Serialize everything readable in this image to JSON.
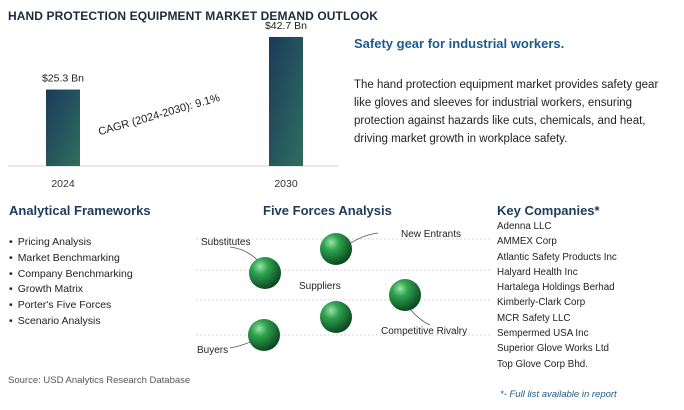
{
  "title": "HAND PROTECTION EQUIPMENT MARKET DEMAND OUTLOOK",
  "chart_data": {
    "type": "bar",
    "categories": [
      "2024",
      "2030"
    ],
    "values": [
      25.3,
      42.7
    ],
    "value_labels": [
      "$25.3 Bn",
      "$42.7 Bn"
    ],
    "annotation": "CAGR (2024-2030): 9.1%",
    "ylim": [
      0,
      45
    ],
    "colors": [
      "#1b3a5c",
      "#2f6e5e"
    ]
  },
  "subheading": "Safety gear for industrial workers.",
  "description": "The hand protection equipment market provides safety gear like gloves and sleeves for industrial workers, ensuring protection against hazards like cuts, chemicals, and heat, driving market growth in workplace safety.",
  "frameworks": {
    "heading": "Analytical Frameworks",
    "items": [
      "Pricing Analysis",
      "Market Benchmarking",
      "Company Benchmarking",
      "Growth Matrix",
      "Porter's Five Forces",
      "Scenario Analysis"
    ]
  },
  "five_forces": {
    "heading": "Five Forces Analysis",
    "labels": {
      "substitutes": "Substitutes",
      "new_entrants": "New Entrants",
      "suppliers": "Suppliers",
      "competitive_rivalry": "Competitive Rivalry",
      "buyers": "Buyers"
    }
  },
  "companies": {
    "heading": "Key Companies*",
    "items": [
      "Adenna LLC",
      "AMMEX Corp",
      "Atlantic Safety Products Inc",
      "Halyard Health Inc",
      "Hartalega Holdings Berhad",
      "Kimberly-Clark Corp",
      "MCR Safety LLC",
      "Sempermed USA Inc",
      "Superior Glove Works Ltd",
      "Top Glove Corp Bhd."
    ]
  },
  "source": "Source: USD Analytics Research Database",
  "note": "*- Full list available in report"
}
